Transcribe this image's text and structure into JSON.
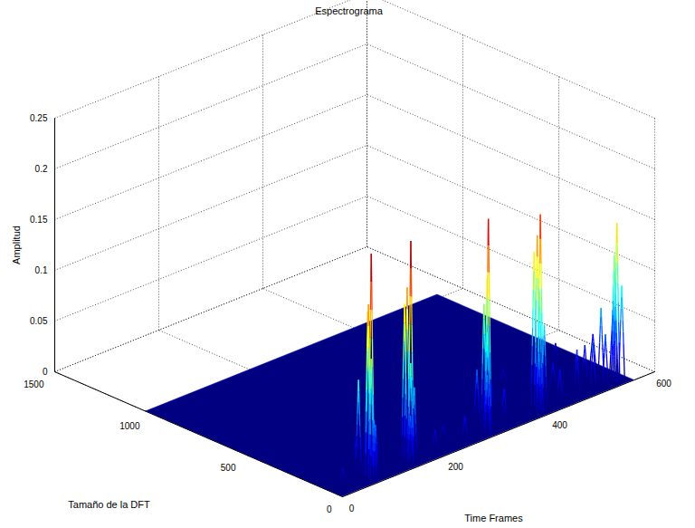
{
  "chart_data": {
    "type": "surface3d",
    "title": "Espectrograma",
    "x_label": "Time Frames",
    "y_label": "Tamaño de la DFT",
    "z_label": "Amplitud",
    "xlim": [
      0,
      600
    ],
    "xticks": [
      0,
      200,
      400,
      600
    ],
    "ylim": [
      0,
      1500
    ],
    "yticks": [
      0,
      500,
      1000,
      1500
    ],
    "zlim": [
      0,
      0.25
    ],
    "zticks": [
      0,
      0.05,
      0.1,
      0.15,
      0.2,
      0.25
    ],
    "grid": true,
    "surface_x_range": [
      0,
      560
    ],
    "surface_y_range": [
      0,
      1024
    ],
    "peaks": {
      "x": [
        70,
        72,
        66,
        78,
        75,
        68,
        82,
        146,
        150,
        142,
        156,
        160,
        138,
        295,
        300,
        290,
        305,
        285,
        310,
        395,
        400,
        390,
        405,
        410,
        385,
        542,
        535,
        548,
        555,
        530,
        560,
        520,
        200,
        230,
        250,
        340,
        360,
        440,
        460,
        480,
        500,
        510,
        555,
        520,
        470,
        420,
        100,
        30
      ],
      "y": [
        40,
        60,
        30,
        80,
        120,
        20,
        50,
        40,
        70,
        30,
        100,
        60,
        20,
        40,
        60,
        30,
        90,
        20,
        140,
        40,
        70,
        30,
        100,
        60,
        20,
        40,
        30,
        70,
        50,
        90,
        110,
        40,
        60,
        100,
        40,
        80,
        200,
        60,
        150,
        80,
        50,
        120,
        200,
        300,
        250,
        300,
        200,
        80
      ],
      "z": [
        0.222,
        0.17,
        0.12,
        0.16,
        0.09,
        0.06,
        0.05,
        0.219,
        0.17,
        0.1,
        0.15,
        0.07,
        0.05,
        0.21,
        0.15,
        0.1,
        0.12,
        0.06,
        0.05,
        0.194,
        0.17,
        0.12,
        0.15,
        0.08,
        0.06,
        0.155,
        0.1,
        0.12,
        0.09,
        0.07,
        0.06,
        0.05,
        0.02,
        0.015,
        0.025,
        0.03,
        0.02,
        0.03,
        0.025,
        0.04,
        0.045,
        0.035,
        0.03,
        0.02,
        0.02,
        0.015,
        0.02,
        0.015
      ]
    }
  }
}
